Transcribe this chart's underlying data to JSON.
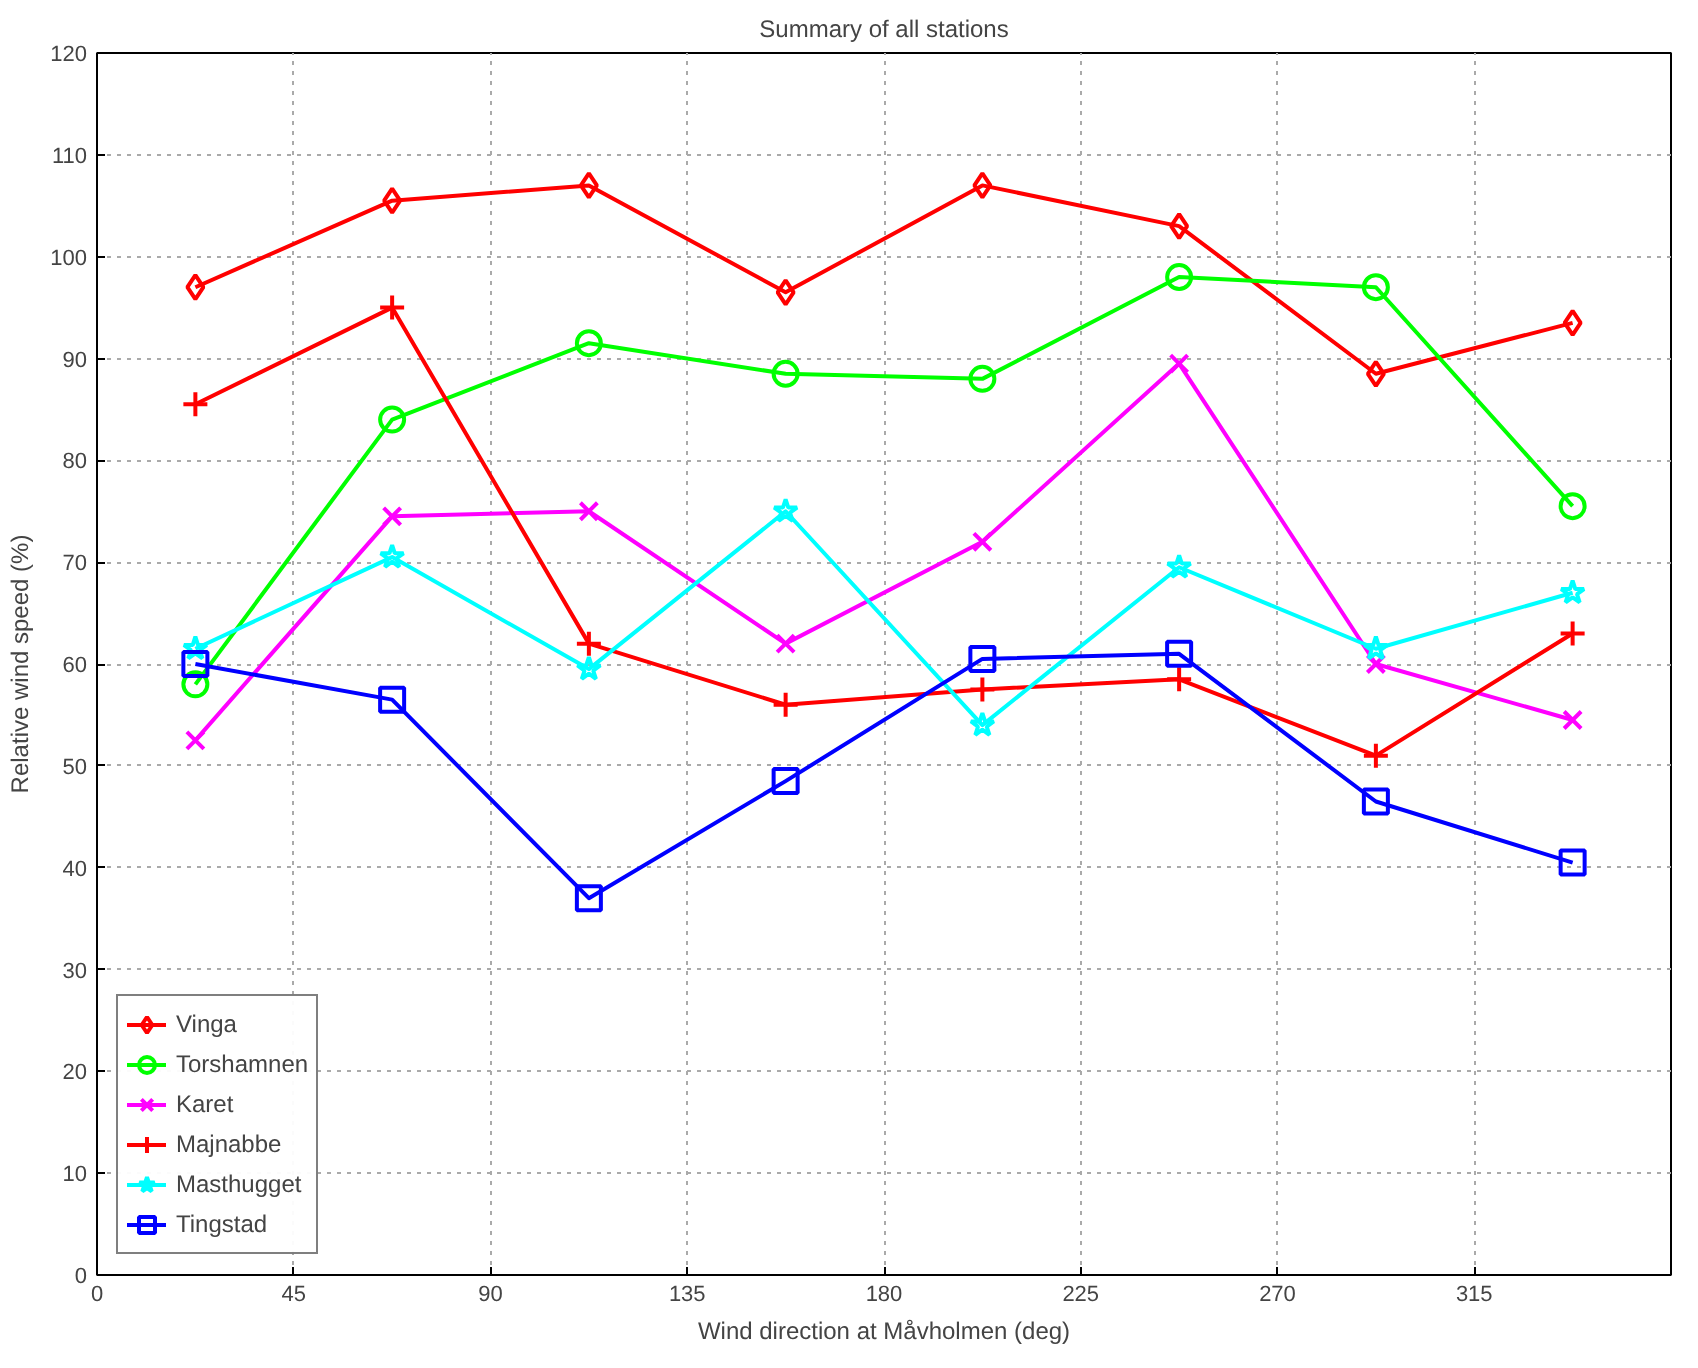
{
  "chart_data": {
    "type": "line",
    "title": "Summary of all stations",
    "xlabel": "Wind direction at Måvholmen (deg)",
    "ylabel": "Relative wind speed (%)",
    "x": [
      22.5,
      67.5,
      112.5,
      157.5,
      202.5,
      247.5,
      292.5,
      337.5
    ],
    "series": [
      {
        "name": "Vinga",
        "color": "#ff0000",
        "marker": "diamond",
        "values": [
          97,
          105.5,
          107,
          96.5,
          107,
          103,
          88.5,
          93.5
        ]
      },
      {
        "name": "Torshamnen",
        "color": "#00ff00",
        "marker": "circle",
        "values": [
          58,
          84,
          91.5,
          88.5,
          88,
          98,
          97,
          75.5
        ]
      },
      {
        "name": "Karet",
        "color": "#ff00ff",
        "marker": "x",
        "values": [
          52.5,
          74.5,
          75,
          62,
          72,
          89.5,
          60,
          54.5
        ]
      },
      {
        "name": "Majnabbe",
        "color": "#ff0000",
        "marker": "cross",
        "values": [
          85.5,
          95,
          62,
          56,
          57.5,
          58.5,
          51,
          63
        ]
      },
      {
        "name": "Masthugget",
        "color": "#00ffff",
        "marker": "star",
        "values": [
          61.5,
          70.5,
          59.5,
          75,
          54,
          69.5,
          61.5,
          67
        ]
      },
      {
        "name": "Tingstad",
        "color": "#0000ff",
        "marker": "square",
        "values": [
          60,
          56.5,
          37,
          48.5,
          60.5,
          61,
          46.5,
          40.5
        ]
      }
    ],
    "xlim": [
      0,
      360
    ],
    "xticks": [
      0,
      45,
      90,
      135,
      180,
      225,
      270,
      315
    ],
    "ylim": [
      0,
      120
    ],
    "yticks": [
      0,
      10,
      20,
      30,
      40,
      50,
      60,
      70,
      80,
      90,
      100,
      110,
      120
    ],
    "grid": true,
    "legend": "bottom left",
    "line_style": "solid"
  }
}
